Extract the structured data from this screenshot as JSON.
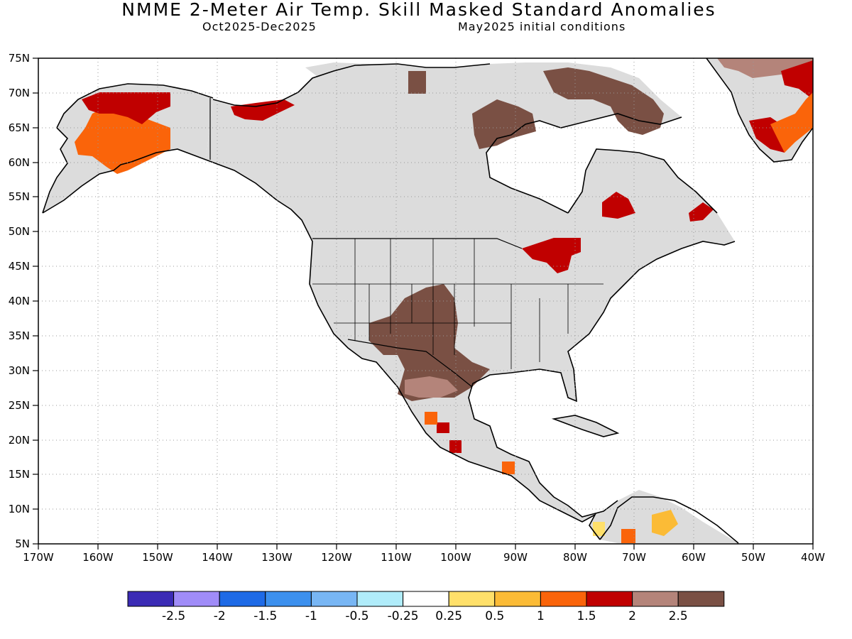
{
  "header": {
    "title": "NMME 2-Meter Air Temp. Skill Masked Standard Anomalies",
    "period": "Oct2025-Dec2025",
    "init": "May2025 initial conditions"
  },
  "axes": {
    "lat_labels": [
      "75N",
      "70N",
      "65N",
      "60N",
      "55N",
      "50N",
      "45N",
      "40N",
      "35N",
      "30N",
      "25N",
      "20N",
      "15N",
      "10N",
      "5N"
    ],
    "lon_labels": [
      "170W",
      "160W",
      "150W",
      "140W",
      "130W",
      "120W",
      "110W",
      "100W",
      "90W",
      "80W",
      "70W",
      "60W",
      "50W",
      "40W"
    ]
  },
  "colorbar": {
    "colors": [
      "#3b2bb5",
      "#a08cf8",
      "#1e6ae6",
      "#3c90ee",
      "#78b6f4",
      "#b0ecfa",
      "#ffffff",
      "#ffe06a",
      "#fbbb36",
      "#fa640a",
      "#c00000",
      "#b4847a",
      "#7a5044"
    ],
    "labels": [
      "-2.5",
      "-2",
      "-1.5",
      "-1",
      "-0.5",
      "-0.25",
      "0.25",
      "0.5",
      "1",
      "1.5",
      "2",
      "2.5"
    ]
  }
}
